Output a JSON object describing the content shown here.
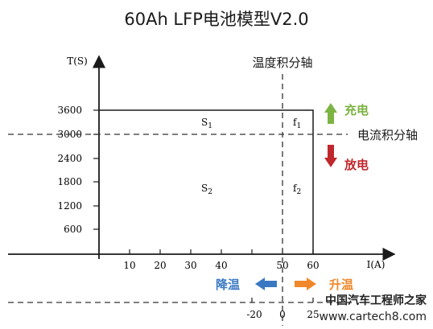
{
  "title": "60Ah LFP电池模型V2.0",
  "y_axis_label": "T(S)",
  "x_axis_label": "I(A)",
  "y_ticks": [
    "3600",
    "3000",
    "2400",
    "1800",
    "1200",
    "600"
  ],
  "x_ticks": [
    "10",
    "20",
    "30",
    "40",
    "50",
    "60"
  ],
  "lower_x_ticks": [
    "-20",
    "0",
    "25"
  ],
  "temp_axis_label": "温度积分轴",
  "current_axis_label": "电流积分轴",
  "regions": {
    "s1": {
      "main": "S",
      "sub": "1"
    },
    "s2": {
      "main": "S",
      "sub": "2"
    },
    "f1": {
      "main": "f",
      "sub": "1"
    },
    "f2": {
      "main": "f",
      "sub": "2"
    }
  },
  "legend": {
    "charge": "充电",
    "discharge": "放电",
    "cool": "降温",
    "heat": "升温"
  },
  "watermark": {
    "line1": "中国汽车工程师之家",
    "line2": "www.cartech8.com"
  },
  "colors": {
    "charge": "#7cb342",
    "discharge": "#c0272d",
    "cool": "#3a78c2",
    "heat": "#f0882a",
    "axis": "#1a1a1a",
    "dashed": "#333333"
  }
}
